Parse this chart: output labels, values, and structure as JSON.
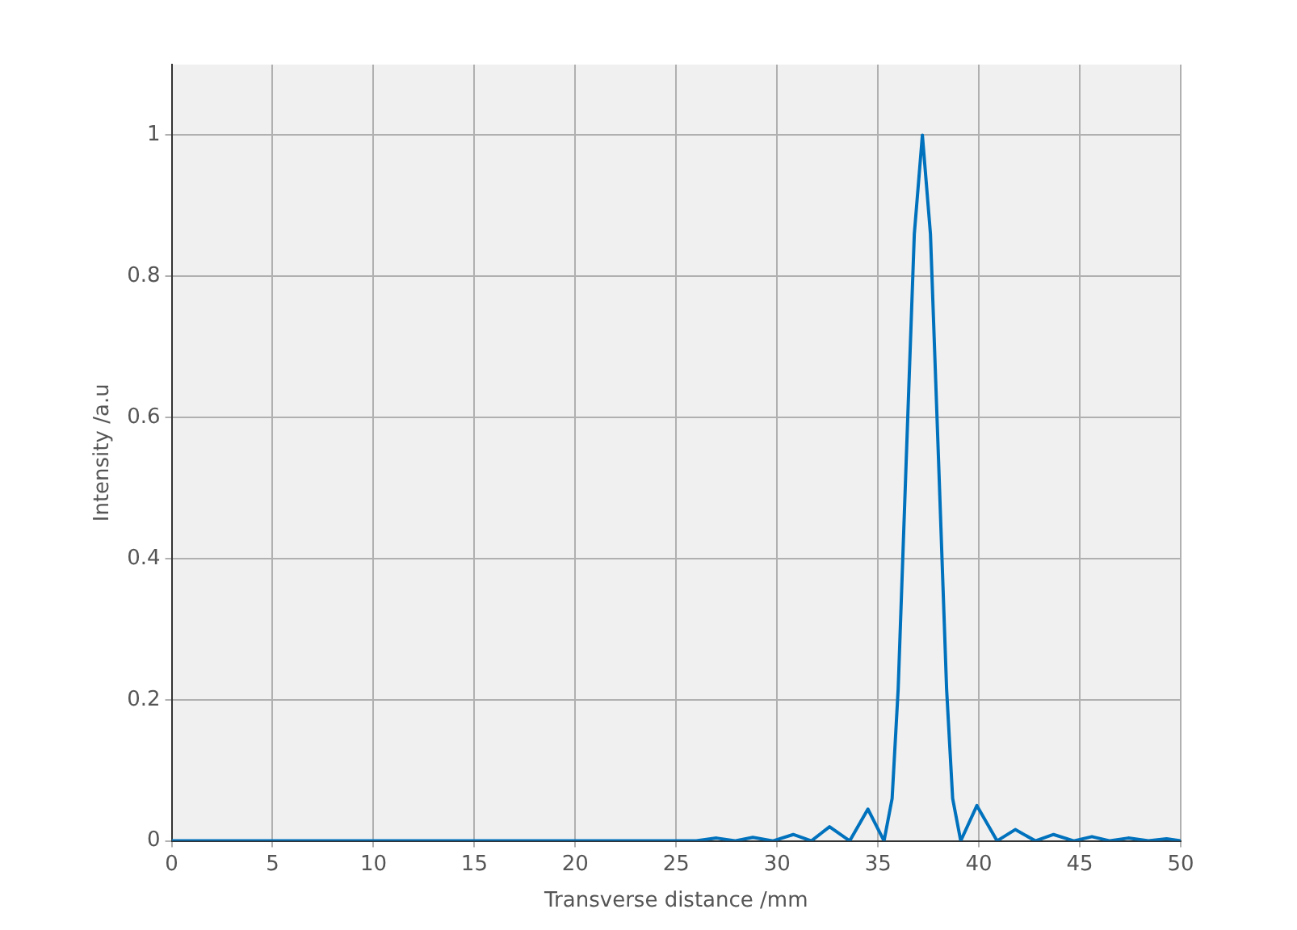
{
  "chart_data": {
    "type": "line",
    "xlabel": "Transverse distance /mm",
    "ylabel": "Intensity /a.u",
    "x": [
      0,
      5,
      10,
      15,
      20,
      24,
      26.0,
      27.0,
      27.9,
      28.8,
      29.8,
      30.8,
      31.7,
      32.6,
      33.6,
      34.5,
      35.3,
      35.7,
      36.0,
      36.4,
      36.8,
      37.2,
      37.6,
      38.0,
      38.4,
      38.7,
      39.1,
      39.9,
      40.9,
      41.8,
      42.8,
      43.7,
      44.7,
      45.6,
      46.5,
      47.4,
      48.4,
      49.3,
      50
    ],
    "series": [
      {
        "color": "#0072bd",
        "values": [
          0,
          0,
          0,
          0,
          0,
          0,
          0,
          0.004,
          0,
          0.005,
          0,
          0.009,
          0,
          0.02,
          0,
          0.045,
          0,
          0.06,
          0.215,
          0.54,
          0.86,
          1,
          0.86,
          0.54,
          0.215,
          0.06,
          0,
          0.05,
          0,
          0.016,
          0,
          0.009,
          0,
          0.006,
          0,
          0.004,
          0,
          0.003,
          0
        ]
      }
    ],
    "xlim": [
      0,
      50
    ],
    "xticks": [
      0,
      5,
      10,
      15,
      20,
      25,
      30,
      35,
      40,
      45,
      50
    ],
    "ylim": [
      0,
      1.1
    ],
    "yticks": [
      0,
      0.2,
      0.4,
      0.6,
      0.8,
      1
    ],
    "grid": true,
    "legend": false,
    "marker": "none",
    "line_style": "solid"
  }
}
